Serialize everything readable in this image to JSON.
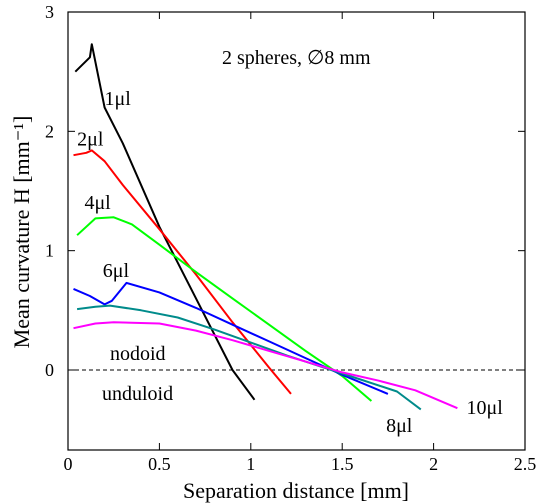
{
  "chart_data": {
    "type": "line",
    "title": "",
    "annotation": "2 spheres, ∅8 mm",
    "xlabel": "Separation distance [mm]",
    "ylabel": "Mean curvature H [mm⁻¹]",
    "xlim": [
      0,
      2.5
    ],
    "ylim": [
      -0.6,
      3
    ],
    "xticks": [
      "0",
      "0.5",
      "1",
      "1.5",
      "2",
      "2.5"
    ],
    "yticks": [
      "0",
      "1",
      "2",
      "3"
    ],
    "region_labels": {
      "upper": "nodoid",
      "lower": "unduloid"
    },
    "reference_line": {
      "y": 0,
      "style": "dashed"
    },
    "series": [
      {
        "name": "1μl",
        "color": "#000000",
        "points": [
          [
            0.04,
            2.5
          ],
          [
            0.12,
            2.62
          ],
          [
            0.13,
            2.73
          ],
          [
            0.2,
            2.2
          ],
          [
            0.3,
            1.9
          ],
          [
            0.5,
            1.2
          ],
          [
            0.7,
            0.6
          ],
          [
            0.9,
            0.0
          ],
          [
            1.02,
            -0.25
          ]
        ]
      },
      {
        "name": "2μl",
        "color": "#ff0000",
        "points": [
          [
            0.03,
            1.8
          ],
          [
            0.1,
            1.82
          ],
          [
            0.13,
            1.84
          ],
          [
            0.2,
            1.75
          ],
          [
            0.3,
            1.55
          ],
          [
            0.5,
            1.18
          ],
          [
            0.7,
            0.8
          ],
          [
            0.9,
            0.4
          ],
          [
            1.1,
            0.02
          ],
          [
            1.22,
            -0.2
          ]
        ]
      },
      {
        "name": "4μl",
        "color": "#00ff00",
        "points": [
          [
            0.05,
            1.13
          ],
          [
            0.15,
            1.27
          ],
          [
            0.25,
            1.28
          ],
          [
            0.35,
            1.22
          ],
          [
            0.5,
            1.05
          ],
          [
            0.7,
            0.82
          ],
          [
            0.9,
            0.6
          ],
          [
            1.1,
            0.38
          ],
          [
            1.3,
            0.16
          ],
          [
            1.5,
            -0.05
          ],
          [
            1.66,
            -0.26
          ]
        ]
      },
      {
        "name": "6μl",
        "color": "#0000ff",
        "points": [
          [
            0.03,
            0.68
          ],
          [
            0.12,
            0.62
          ],
          [
            0.2,
            0.55
          ],
          [
            0.24,
            0.58
          ],
          [
            0.32,
            0.73
          ],
          [
            0.5,
            0.65
          ],
          [
            0.7,
            0.52
          ],
          [
            0.9,
            0.38
          ],
          [
            1.1,
            0.24
          ],
          [
            1.3,
            0.1
          ],
          [
            1.5,
            -0.04
          ],
          [
            1.75,
            -0.2
          ]
        ]
      },
      {
        "name": "8μl",
        "color": "#008b8b",
        "points": [
          [
            0.05,
            0.51
          ],
          [
            0.15,
            0.53
          ],
          [
            0.23,
            0.54
          ],
          [
            0.4,
            0.5
          ],
          [
            0.6,
            0.44
          ],
          [
            0.8,
            0.34
          ],
          [
            1.0,
            0.23
          ],
          [
            1.2,
            0.12
          ],
          [
            1.4,
            0.02
          ],
          [
            1.6,
            -0.08
          ],
          [
            1.8,
            -0.18
          ],
          [
            1.93,
            -0.33
          ]
        ]
      },
      {
        "name": "10μl",
        "color": "#ff00ff",
        "points": [
          [
            0.03,
            0.35
          ],
          [
            0.15,
            0.39
          ],
          [
            0.25,
            0.4
          ],
          [
            0.5,
            0.39
          ],
          [
            0.7,
            0.33
          ],
          [
            0.9,
            0.25
          ],
          [
            1.1,
            0.16
          ],
          [
            1.3,
            0.07
          ],
          [
            1.5,
            -0.02
          ],
          [
            1.7,
            -0.09
          ],
          [
            1.9,
            -0.17
          ],
          [
            2.13,
            -0.32
          ]
        ]
      }
    ]
  }
}
